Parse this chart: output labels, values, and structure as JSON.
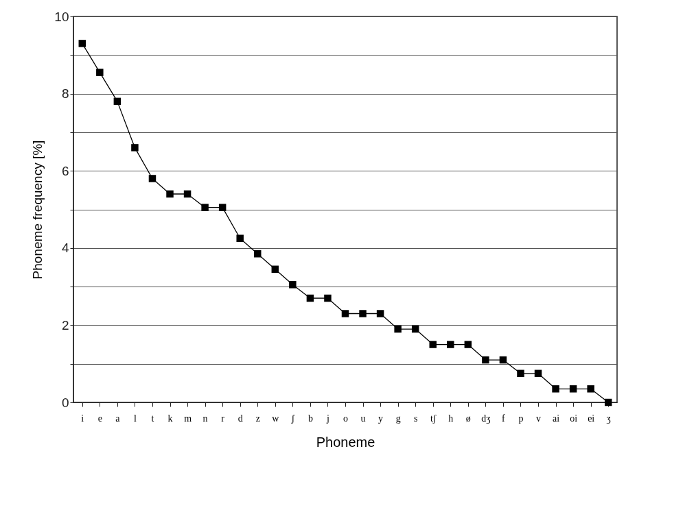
{
  "chart_data": {
    "type": "line",
    "xlabel": "Phoneme",
    "ylabel": "Phoneme frequency [%]",
    "categories": [
      "i",
      "e",
      "a",
      "l",
      "t",
      "k",
      "m",
      "n",
      "r",
      "d",
      "z",
      "w",
      "ʃ",
      "b",
      "j",
      "o",
      "u",
      "y",
      "g",
      "s",
      "tʃ",
      "h",
      "ø",
      "dʒ",
      "f",
      "p",
      "v",
      "ai",
      "oi",
      "ei",
      "ʒ"
    ],
    "series": [
      {
        "color": "#000000",
        "values": [
          9.3,
          8.55,
          7.8,
          6.6,
          5.8,
          5.4,
          5.4,
          5.05,
          5.05,
          4.25,
          3.85,
          3.45,
          3.05,
          2.7,
          2.7,
          2.3,
          2.3,
          2.3,
          1.9,
          1.9,
          1.5,
          1.5,
          1.5,
          1.1,
          1.1,
          0.75,
          0.75,
          0.35,
          0.35,
          0.35,
          0
        ]
      }
    ],
    "ylim": [
      0,
      10
    ],
    "yticks": [
      0,
      {
        "value": 1,
        "label": null
      },
      2,
      {
        "value": 3,
        "label": null
      },
      4,
      {
        "value": 5,
        "label": null
      },
      6,
      {
        "value": 7,
        "label": null
      },
      8,
      {
        "value": 9,
        "label": null
      },
      10
    ],
    "grid": "y",
    "marker": "square",
    "line_style": "solid",
    "legend": false
  }
}
